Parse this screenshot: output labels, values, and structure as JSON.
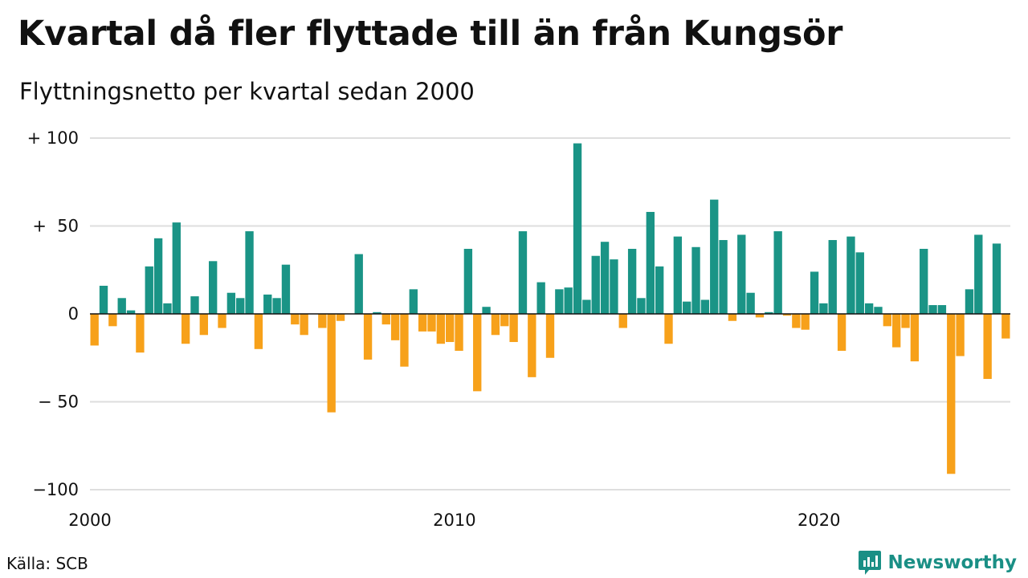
{
  "header": {
    "title": "Kvartal då fler flyttade till än från Kungsör",
    "subtitle": "Flyttningsnetto per kvartal sedan 2000"
  },
  "footer": {
    "source": "Källa: SCB",
    "brand": "Newsworthy",
    "brand_icon": "bar-chart-speech-bubble-icon"
  },
  "colors": {
    "positive": "#1a9486",
    "negative": "#f7a11a",
    "grid": "#dedede",
    "zero_line": "#111111"
  },
  "chart_data": {
    "type": "bar",
    "title": "Kvartal då fler flyttade till än från Kungsör",
    "subtitle": "Flyttningsnetto per kvartal sedan 2000",
    "xlabel": "",
    "ylabel": "",
    "x_ticks": [
      "2000",
      "2010",
      "2020"
    ],
    "y_ticks": [
      {
        "value": 100,
        "label": "+ 100"
      },
      {
        "value": 50,
        "label": "+  50"
      },
      {
        "value": 0,
        "label": "0"
      },
      {
        "value": -50,
        "label": "− 50"
      },
      {
        "value": -100,
        "label": "−100"
      }
    ],
    "ylim": [
      -100,
      100
    ],
    "grid": true,
    "categories": [
      "2000 Q1",
      "2000 Q2",
      "2000 Q3",
      "2000 Q4",
      "2001 Q1",
      "2001 Q2",
      "2001 Q3",
      "2001 Q4",
      "2002 Q1",
      "2002 Q2",
      "2002 Q3",
      "2002 Q4",
      "2003 Q1",
      "2003 Q2",
      "2003 Q3",
      "2003 Q4",
      "2004 Q1",
      "2004 Q2",
      "2004 Q3",
      "2004 Q4",
      "2005 Q1",
      "2005 Q2",
      "2005 Q3",
      "2005 Q4",
      "2006 Q1",
      "2006 Q2",
      "2006 Q3",
      "2006 Q4",
      "2007 Q1",
      "2007 Q2",
      "2007 Q3",
      "2007 Q4",
      "2008 Q1",
      "2008 Q2",
      "2008 Q3",
      "2008 Q4",
      "2009 Q1",
      "2009 Q2",
      "2009 Q3",
      "2009 Q4",
      "2010 Q1",
      "2010 Q2",
      "2010 Q3",
      "2010 Q4",
      "2011 Q1",
      "2011 Q2",
      "2011 Q3",
      "2011 Q4",
      "2012 Q1",
      "2012 Q2",
      "2012 Q3",
      "2012 Q4",
      "2013 Q1",
      "2013 Q2",
      "2013 Q3",
      "2013 Q4",
      "2014 Q1",
      "2014 Q2",
      "2014 Q3",
      "2014 Q4",
      "2015 Q1",
      "2015 Q2",
      "2015 Q3",
      "2015 Q4",
      "2016 Q1",
      "2016 Q2",
      "2016 Q3",
      "2016 Q4",
      "2017 Q1",
      "2017 Q2",
      "2017 Q3",
      "2017 Q4",
      "2018 Q1",
      "2018 Q2",
      "2018 Q3",
      "2018 Q4",
      "2019 Q1",
      "2019 Q2",
      "2019 Q3",
      "2019 Q4",
      "2020 Q1",
      "2020 Q2",
      "2020 Q3",
      "2020 Q4",
      "2021 Q1",
      "2021 Q2",
      "2021 Q3",
      "2021 Q4",
      "2022 Q1",
      "2022 Q2",
      "2022 Q3",
      "2022 Q4",
      "2023 Q1",
      "2023 Q2",
      "2023 Q3",
      "2023 Q4",
      "2024 Q1",
      "2024 Q2",
      "2024 Q3",
      "2024 Q4",
      "2025 Q1"
    ],
    "values": [
      -18,
      16,
      -7,
      9,
      2,
      -22,
      27,
      43,
      6,
      52,
      -17,
      10,
      -12,
      30,
      -8,
      12,
      9,
      47,
      -20,
      11,
      9,
      28,
      -6,
      -12,
      0,
      -8,
      -56,
      -4,
      0,
      34,
      -26,
      1,
      -6,
      -15,
      -30,
      14,
      -10,
      -10,
      -17,
      -16,
      -21,
      37,
      -44,
      4,
      -12,
      -7,
      -16,
      47,
      -36,
      18,
      -25,
      14,
      15,
      97,
      8,
      33,
      41,
      31,
      -8,
      37,
      9,
      58,
      27,
      -17,
      44,
      7,
      38,
      8,
      65,
      42,
      -4,
      45,
      12,
      -2,
      1,
      47,
      -1,
      -8,
      -9,
      24,
      6,
      42,
      -21,
      44,
      35,
      6,
      4,
      -7,
      -19,
      -8,
      -27,
      37,
      5,
      5,
      -91,
      -24,
      14,
      45,
      -37,
      40,
      -14
    ]
  }
}
